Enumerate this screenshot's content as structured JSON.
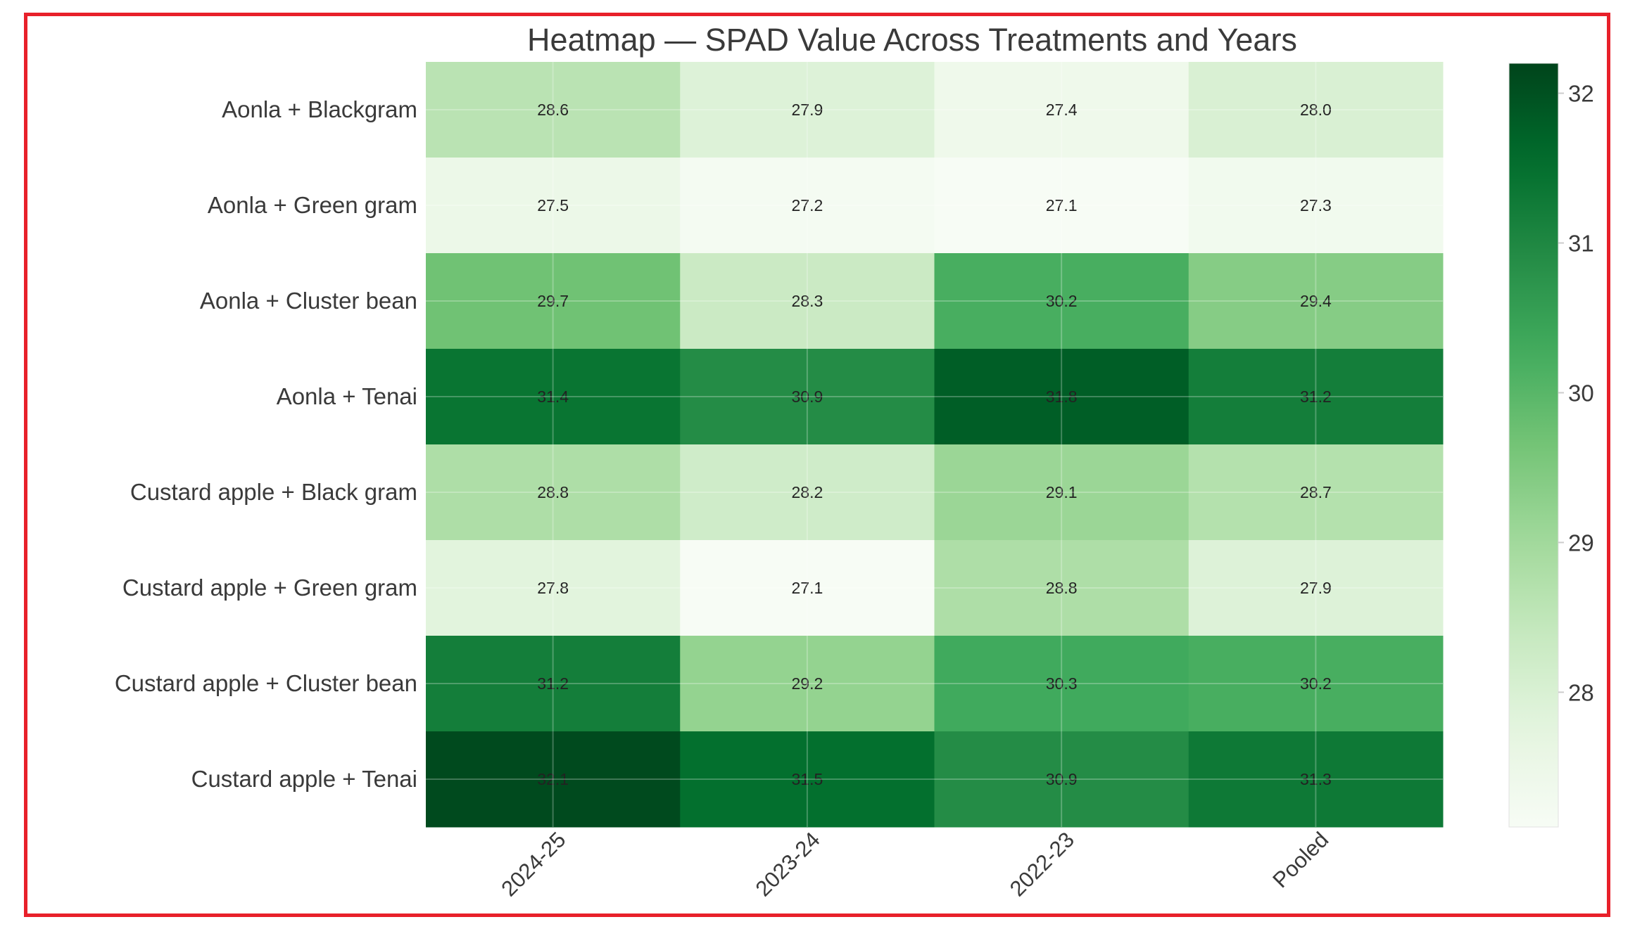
{
  "chart_data": {
    "type": "heatmap",
    "title": "Heatmap — SPAD Value Across Treatments and Years",
    "rows": [
      "Aonla + Blackgram",
      "Aonla + Green gram",
      "Aonla + Cluster bean",
      "Aonla + Tenai",
      "Custard apple + Black gram",
      "Custard apple + Green gram",
      "Custard apple + Cluster bean",
      "Custard apple + Tenai"
    ],
    "columns": [
      "2024-25",
      "2023-24",
      "2022-23",
      "Pooled"
    ],
    "values": [
      [
        28.6,
        27.9,
        27.4,
        28.0
      ],
      [
        27.5,
        27.2,
        27.1,
        27.3
      ],
      [
        29.7,
        28.3,
        30.2,
        29.4
      ],
      [
        31.4,
        30.9,
        31.8,
        31.2
      ],
      [
        28.8,
        28.2,
        29.1,
        28.7
      ],
      [
        27.8,
        27.1,
        28.8,
        27.9
      ],
      [
        31.2,
        29.2,
        30.3,
        30.2
      ],
      [
        32.1,
        31.5,
        30.9,
        31.3
      ]
    ],
    "colorbar": {
      "min": 27.1,
      "max": 32.2,
      "ticks": [
        28,
        29,
        30,
        31,
        32
      ],
      "colormap": "Greens",
      "low_color": "#f7fcf5",
      "high_color": "#00441b"
    },
    "grid": true
  }
}
